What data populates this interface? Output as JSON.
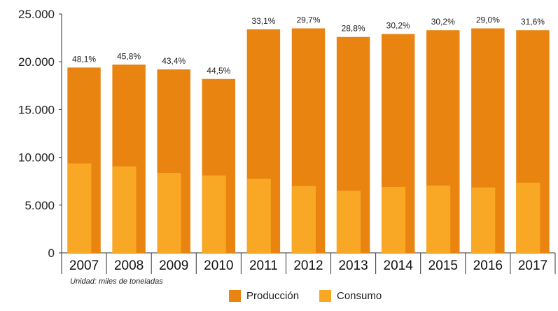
{
  "chart_data": {
    "type": "bar",
    "title": "",
    "xlabel": "",
    "ylabel": "",
    "ylim": [
      0,
      25000
    ],
    "yticks": [
      0,
      5000,
      10000,
      15000,
      20000,
      25000
    ],
    "ytick_labels": [
      "0",
      "5.000",
      "10.000",
      "15.000",
      "20.000",
      "25.000"
    ],
    "categories": [
      "2007",
      "2008",
      "2009",
      "2010",
      "2011",
      "2012",
      "2013",
      "2014",
      "2015",
      "2016",
      "2017"
    ],
    "series": [
      {
        "name": "Producción",
        "color": "#E8840F",
        "values": [
          19400,
          19700,
          19200,
          18200,
          23400,
          23500,
          22600,
          22900,
          23300,
          23500,
          23300
        ]
      },
      {
        "name": "Consumo",
        "color": "#F9A825",
        "values": [
          9350,
          9050,
          8350,
          8100,
          7750,
          7000,
          6500,
          6900,
          7050,
          6850,
          7350
        ]
      }
    ],
    "data_labels": [
      "48,1%",
      "45,8%",
      "43,4%",
      "44,5%",
      "33,1%",
      "29,7%",
      "28,8%",
      "30,2%",
      "30,2%",
      "29,0%",
      "31,6%"
    ],
    "legend_position": "bottom",
    "grid": false
  },
  "note": "Unidad: miles de toneladas"
}
